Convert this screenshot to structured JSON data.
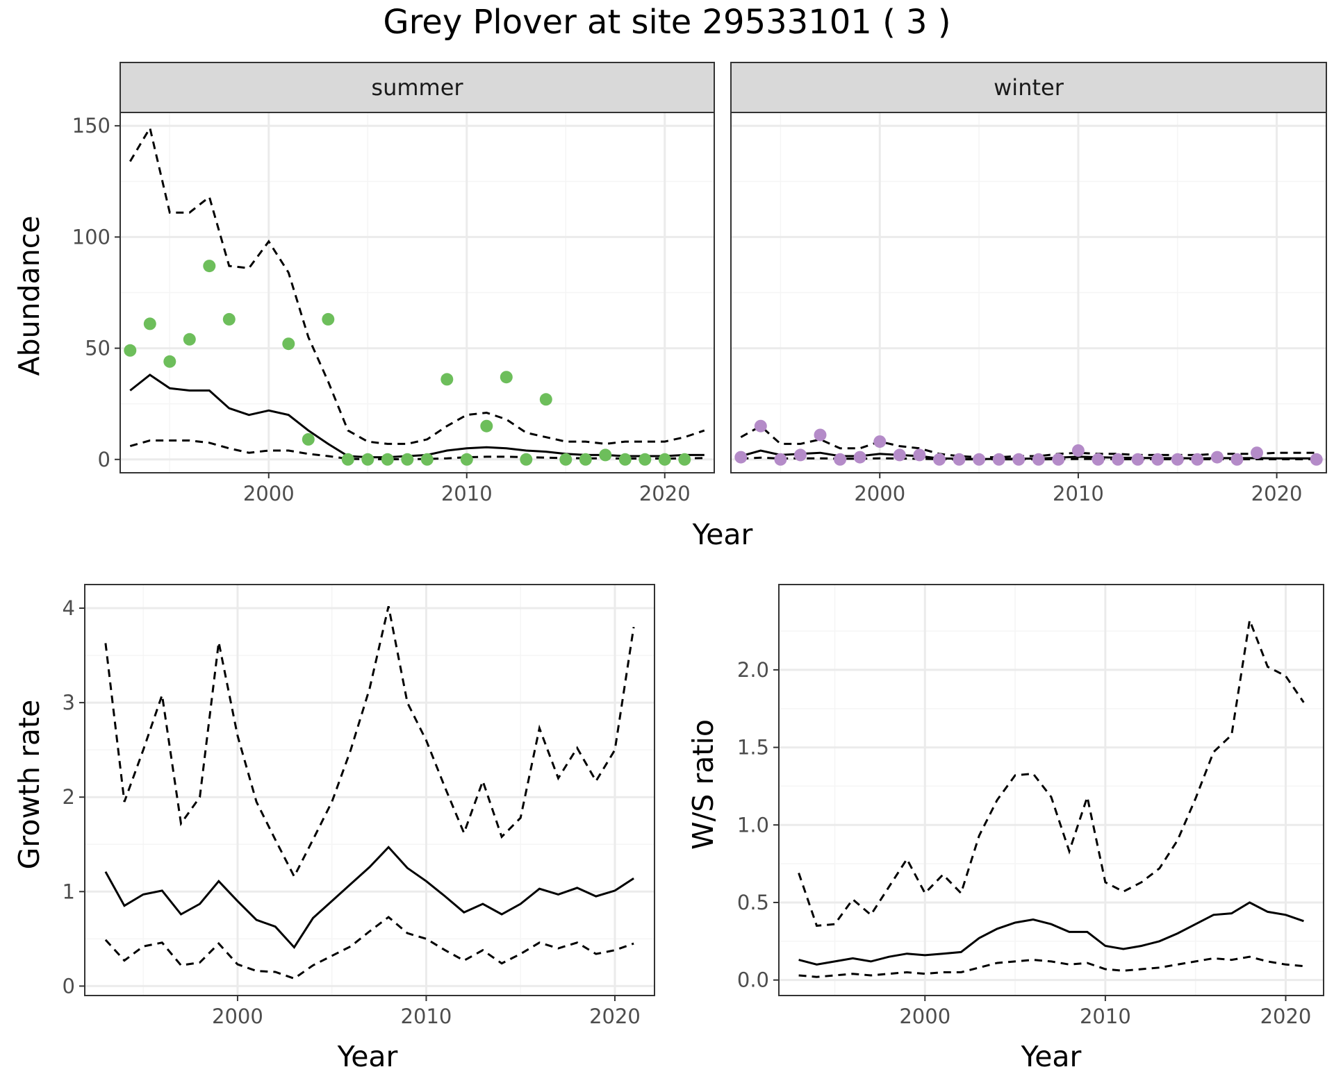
{
  "title": "Grey Plover at site 29533101 ( 3 )",
  "colors": {
    "summer_points": "#6dbe5b",
    "winter_points": "#b48bc8",
    "line": "#000000",
    "strip_fill": "#d9d9d9",
    "grid_major": "#ebebeb",
    "grid_minor": "#f5f5f5"
  },
  "chart_data": [
    {
      "id": "abundance",
      "type": "line",
      "facet_labels": [
        "summer",
        "winter"
      ],
      "xlabel": "Year",
      "ylabel": "Abundance",
      "xlim": [
        1992.5,
        2022.5
      ],
      "ylim": [
        -6,
        156
      ],
      "xticks": [
        2000,
        2010,
        2020
      ],
      "yticks": [
        0,
        50,
        100,
        150
      ],
      "grid": true,
      "panels": [
        {
          "facet": "summer",
          "x": [
            1993,
            1994,
            1995,
            1996,
            1997,
            1998,
            1999,
            2000,
            2001,
            2002,
            2003,
            2004,
            2005,
            2006,
            2007,
            2008,
            2009,
            2010,
            2011,
            2012,
            2013,
            2014,
            2015,
            2016,
            2017,
            2018,
            2019,
            2020,
            2021,
            2022
          ],
          "observed": [
            49,
            61,
            44,
            54,
            87,
            63,
            null,
            null,
            52,
            9,
            63,
            0,
            0,
            0,
            0,
            0,
            36,
            0,
            15,
            37,
            0,
            27,
            0,
            0,
            2,
            0,
            0,
            0,
            0,
            null
          ],
          "fitted": [
            31,
            38,
            32,
            31,
            31,
            23,
            20,
            22,
            20,
            13,
            7,
            1.5,
            1,
            1,
            1.5,
            2,
            4,
            5,
            5.5,
            5,
            4,
            3.5,
            2.5,
            2,
            2,
            1.5,
            1.5,
            1.5,
            2,
            2
          ],
          "upper": [
            134,
            149,
            111,
            111,
            118,
            87,
            86,
            98,
            84,
            55,
            35,
            13,
            8,
            7,
            7,
            9,
            15,
            20,
            21,
            18,
            12,
            10,
            8,
            8,
            7,
            8,
            8,
            8,
            10,
            13
          ],
          "lower": [
            6,
            8.5,
            8.5,
            8.5,
            7.5,
            5,
            3,
            4,
            4,
            2.5,
            1.5,
            0.3,
            0.1,
            0.1,
            0.1,
            0.2,
            0.5,
            1,
            1.2,
            1.2,
            1,
            0.8,
            0.6,
            0.5,
            0.5,
            0.4,
            0.4,
            0.4,
            0.5,
            0.6
          ]
        },
        {
          "facet": "winter",
          "x": [
            1993,
            1994,
            1995,
            1996,
            1997,
            1998,
            1999,
            2000,
            2001,
            2002,
            2003,
            2004,
            2005,
            2006,
            2007,
            2008,
            2009,
            2010,
            2011,
            2012,
            2013,
            2014,
            2015,
            2016,
            2017,
            2018,
            2019,
            2020,
            2021,
            2022
          ],
          "observed": [
            1,
            15,
            0,
            2,
            11,
            0,
            1,
            8,
            2,
            2,
            0,
            0,
            0,
            0,
            0,
            0,
            0,
            4,
            0,
            0,
            0,
            0,
            0,
            0,
            1,
            0,
            3,
            null,
            null,
            0
          ],
          "fitted": [
            1.5,
            4,
            2,
            2.5,
            3,
            1.5,
            1.5,
            2.5,
            2,
            1.5,
            0.5,
            0.3,
            0.2,
            0.2,
            0.3,
            0.4,
            0.8,
            1.2,
            1,
            0.8,
            0.7,
            0.6,
            0.6,
            0.5,
            0.6,
            0.6,
            0.6,
            0.5,
            0.5,
            0.5
          ],
          "upper": [
            10,
            15,
            7,
            7,
            9,
            5,
            5,
            8,
            6,
            5,
            2.5,
            1.5,
            1,
            1,
            1.5,
            1.5,
            2.5,
            3,
            2.5,
            2.5,
            2,
            2,
            2,
            2,
            2.5,
            2.5,
            2.5,
            3,
            3,
            3
          ],
          "lower": [
            0.3,
            0.8,
            0.4,
            0.5,
            0.5,
            0.3,
            0.3,
            0.5,
            0.4,
            0.3,
            0.1,
            0.05,
            0.05,
            0.05,
            0.05,
            0.05,
            0.1,
            0.2,
            0.2,
            0.1,
            0.1,
            0.1,
            0.1,
            0.1,
            0.1,
            0.1,
            0.1,
            0.1,
            0.1,
            0.1
          ]
        }
      ]
    },
    {
      "id": "growth",
      "type": "line",
      "xlabel": "Year",
      "ylabel": "Growth rate",
      "xlim": [
        1991.9,
        2022.1
      ],
      "ylim": [
        -0.1,
        4.25
      ],
      "xticks": [
        2000,
        2010,
        2020
      ],
      "yticks": [
        0,
        1,
        2,
        3,
        4
      ],
      "grid": true,
      "x": [
        1993,
        1994,
        1995,
        1996,
        1997,
        1998,
        1999,
        2000,
        2001,
        2002,
        2003,
        2004,
        2005,
        2006,
        2007,
        2008,
        2009,
        2010,
        2011,
        2012,
        2013,
        2014,
        2015,
        2016,
        2017,
        2018,
        2019,
        2020,
        2021
      ],
      "fitted": [
        1.21,
        0.85,
        0.97,
        1.01,
        0.76,
        0.87,
        1.11,
        0.9,
        0.7,
        0.63,
        0.41,
        0.72,
        0.9,
        1.08,
        1.26,
        1.47,
        1.25,
        1.11,
        0.95,
        0.78,
        0.87,
        0.76,
        0.87,
        1.03,
        0.97,
        1.04,
        0.95,
        1.01,
        1.14
      ],
      "upper": [
        3.63,
        1.95,
        2.5,
        3.08,
        1.72,
        2.0,
        3.64,
        2.65,
        1.95,
        1.55,
        1.16,
        1.55,
        1.95,
        2.5,
        3.15,
        4.02,
        3.0,
        2.6,
        2.1,
        1.62,
        2.17,
        1.58,
        1.78,
        2.73,
        2.2,
        2.52,
        2.17,
        2.5,
        3.8
      ],
      "lower": [
        0.49,
        0.27,
        0.42,
        0.46,
        0.22,
        0.25,
        0.45,
        0.23,
        0.16,
        0.15,
        0.08,
        0.22,
        0.32,
        0.42,
        0.58,
        0.73,
        0.56,
        0.5,
        0.38,
        0.27,
        0.38,
        0.24,
        0.34,
        0.46,
        0.4,
        0.46,
        0.34,
        0.38,
        0.45
      ]
    },
    {
      "id": "ratio",
      "type": "line",
      "xlabel": "Year",
      "ylabel": "W/S ratio",
      "xlim": [
        1991.9,
        2022.1
      ],
      "ylim": [
        -0.1,
        2.55
      ],
      "xticks": [
        2000,
        2010,
        2020
      ],
      "yticks": [
        0.0,
        0.5,
        1.0,
        1.5,
        2.0
      ],
      "ytick_labels": [
        "0.0",
        "0.5",
        "1.0",
        "1.5",
        "2.0"
      ],
      "grid": true,
      "x": [
        1993,
        1994,
        1995,
        1996,
        1997,
        1998,
        1999,
        2000,
        2001,
        2002,
        2003,
        2004,
        2005,
        2006,
        2007,
        2008,
        2009,
        2010,
        2011,
        2012,
        2013,
        2014,
        2015,
        2016,
        2017,
        2018,
        2019,
        2020,
        2021
      ],
      "fitted": [
        0.13,
        0.1,
        0.12,
        0.14,
        0.12,
        0.15,
        0.17,
        0.16,
        0.17,
        0.18,
        0.27,
        0.33,
        0.37,
        0.39,
        0.36,
        0.31,
        0.31,
        0.22,
        0.2,
        0.22,
        0.25,
        0.3,
        0.36,
        0.42,
        0.43,
        0.5,
        0.44,
        0.42,
        0.38
      ],
      "upper": [
        0.69,
        0.35,
        0.36,
        0.52,
        0.42,
        0.6,
        0.78,
        0.56,
        0.68,
        0.56,
        0.93,
        1.16,
        1.32,
        1.33,
        1.18,
        0.83,
        1.18,
        0.63,
        0.57,
        0.63,
        0.72,
        0.9,
        1.17,
        1.47,
        1.58,
        2.32,
        2.02,
        1.96,
        1.79
      ],
      "lower": [
        0.03,
        0.02,
        0.03,
        0.04,
        0.03,
        0.04,
        0.05,
        0.04,
        0.05,
        0.05,
        0.08,
        0.11,
        0.12,
        0.13,
        0.12,
        0.1,
        0.11,
        0.07,
        0.06,
        0.07,
        0.08,
        0.1,
        0.12,
        0.14,
        0.13,
        0.15,
        0.12,
        0.1,
        0.09
      ]
    }
  ]
}
